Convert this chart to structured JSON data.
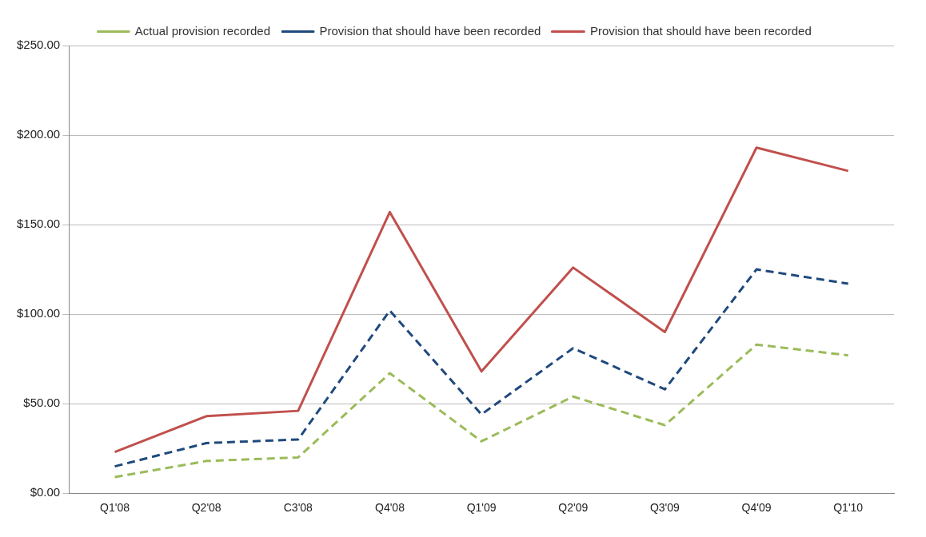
{
  "chart_data": {
    "type": "line",
    "categories": [
      "Q1'08",
      "Q2'08",
      "C3'08",
      "Q4'08",
      "Q1'09",
      "Q2'09",
      "Q3'09",
      "Q4'09",
      "Q1'10"
    ],
    "series": [
      {
        "name": "Actual provision recorded",
        "color": "#9bbb59",
        "line_style": "dashed",
        "values": [
          9,
          18,
          20,
          67,
          29,
          54,
          38,
          83,
          77
        ]
      },
      {
        "name": "Provision that should have been recorded",
        "color": "#1f497d",
        "line_style": "dashed",
        "values": [
          15,
          28,
          30,
          102,
          44,
          81,
          58,
          125,
          117
        ]
      },
      {
        "name": "Provision that should have been recorded",
        "color": "#c0504d",
        "line_style": "solid",
        "values": [
          23,
          43,
          46,
          157,
          68,
          126,
          90,
          193,
          180
        ]
      }
    ],
    "ylim": [
      0,
      250
    ],
    "yticks": [
      {
        "value": 0,
        "label": "$0.00"
      },
      {
        "value": 50,
        "label": "$50.00"
      },
      {
        "value": 100,
        "label": "$100.00"
      },
      {
        "value": 150,
        "label": "$150.00"
      },
      {
        "value": 200,
        "label": "$200.00"
      },
      {
        "value": 250,
        "label": "$250.00"
      }
    ],
    "grid": "y",
    "legend": "top",
    "marker": "none"
  }
}
